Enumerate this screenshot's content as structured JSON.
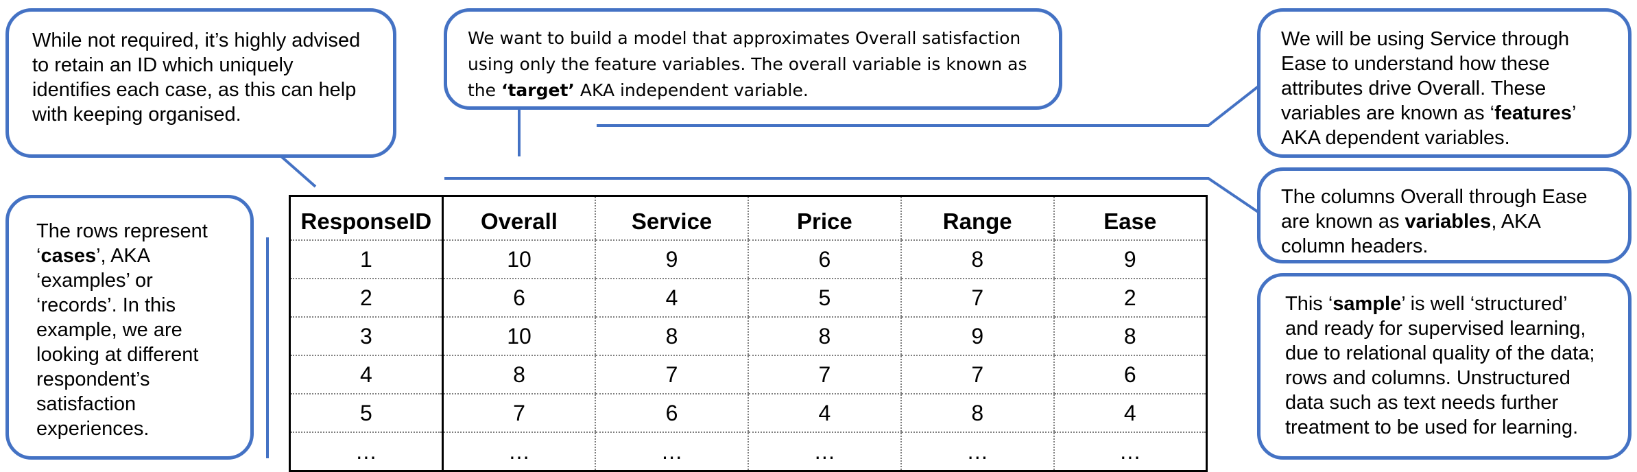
{
  "callouts": {
    "id_note": {
      "t1": "While not required, it’s highly advised to retain an ID which uniquely identifies each case, as this can help with keeping organised."
    },
    "target_note": {
      "t1": "We want to build a model that approximates Overall satisfaction using only the feature variables. The overall variable is known as the ",
      "b1": "‘target’",
      "t2": " AKA independent variable."
    },
    "features_note": {
      "t1": "We will be using Service through Ease to understand how these attributes drive Overall. These variables are known as ‘",
      "b1": "features",
      "t2": "’ AKA dependent variables."
    },
    "variables_note": {
      "t1": "The columns Overall through Ease are known as ",
      "b1": "variables",
      "t2": ", AKA column headers."
    },
    "cases_note": {
      "t1": "The rows represent ‘",
      "b1": "cases",
      "t2": "’, AKA ‘examples’ or ‘records’. In this example, we are looking at different respondent’s satisfaction experiences."
    },
    "sample_note": {
      "t1": "This ‘",
      "b1": "sample",
      "t2": "’ is well ‘structured’ and ready for supervised learning, due to relational quality of the data; rows and columns. Unstructured data such as text needs further treatment to be used for learning."
    }
  },
  "table": {
    "headers": [
      "ResponseID",
      "Overall",
      "Service",
      "Price",
      "Range",
      "Ease"
    ],
    "rows": [
      [
        "1",
        "10",
        "9",
        "6",
        "8",
        "9"
      ],
      [
        "2",
        "6",
        "4",
        "5",
        "7",
        "2"
      ],
      [
        "3",
        "10",
        "8",
        "8",
        "9",
        "8"
      ],
      [
        "4",
        "8",
        "7",
        "7",
        "7",
        "6"
      ],
      [
        "5",
        "7",
        "6",
        "4",
        "8",
        "4"
      ],
      [
        "…",
        "…",
        "…",
        "…",
        "…",
        "…"
      ]
    ]
  },
  "colors": {
    "callout_border": "#4472c4",
    "connector": "#4472c4"
  }
}
